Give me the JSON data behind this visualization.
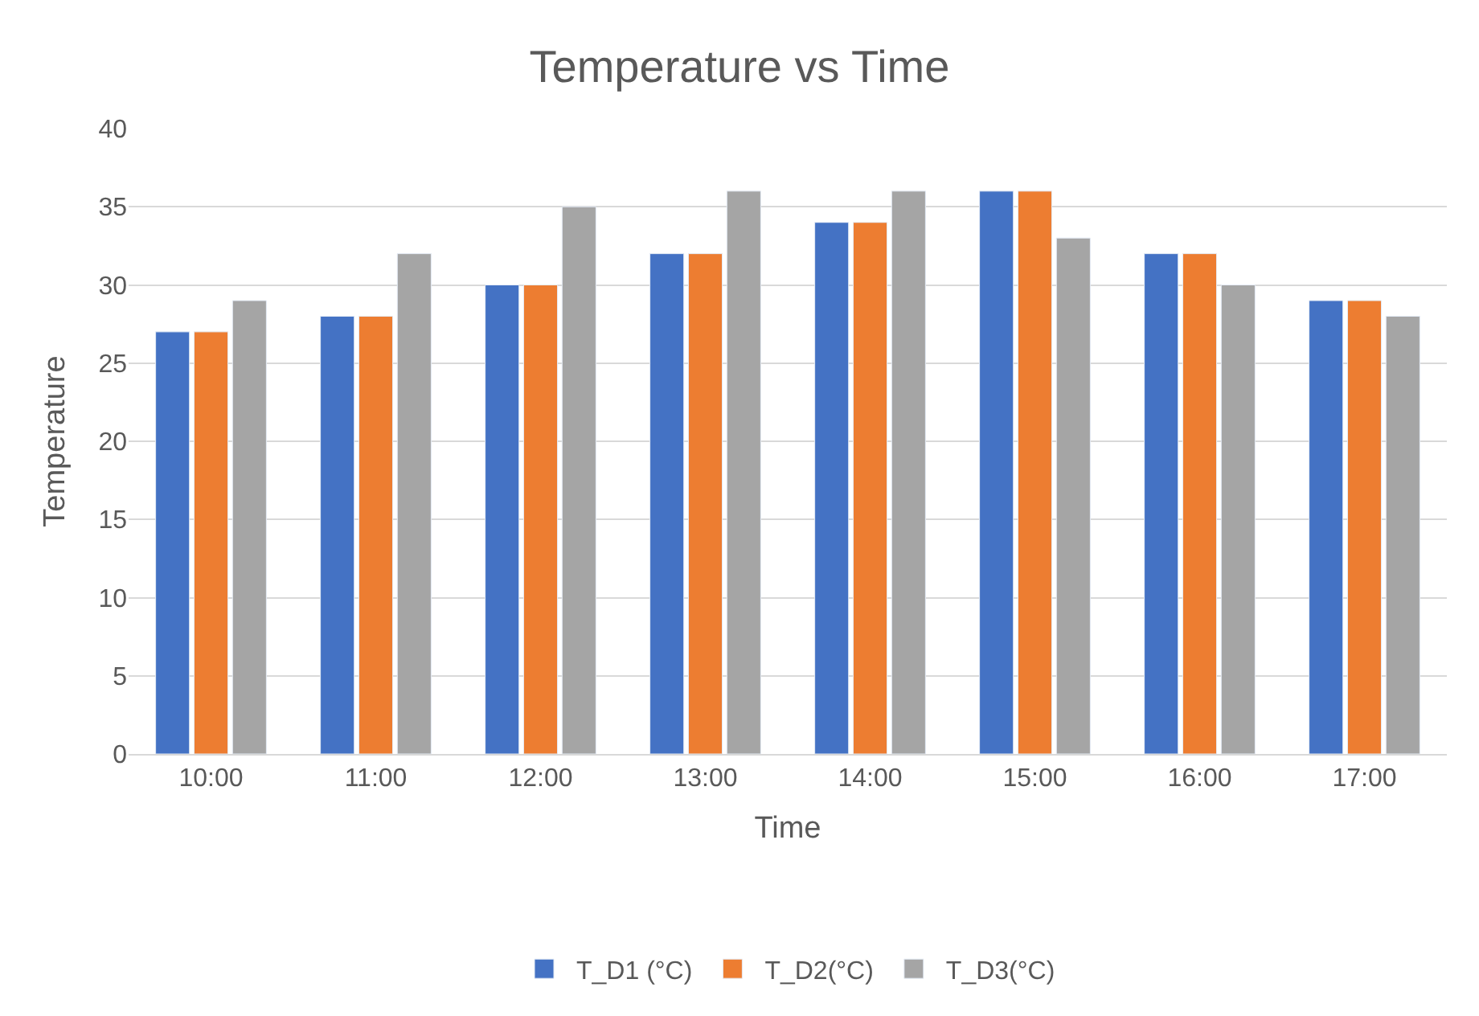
{
  "chart_data": {
    "type": "bar",
    "title": "Temperature vs Time",
    "xlabel": "Time",
    "ylabel": "Temperature",
    "categories": [
      "10:00",
      "11:00",
      "12:00",
      "13:00",
      "14:00",
      "15:00",
      "16:00",
      "17:00"
    ],
    "series": [
      {
        "name": "T_D1 (°C)",
        "color": "#4472c4",
        "values": [
          27,
          28,
          30,
          32,
          34,
          36,
          32,
          29
        ]
      },
      {
        "name": "T_D2(°C)",
        "color": "#ed7d31",
        "values": [
          27,
          28,
          30,
          32,
          34,
          36,
          32,
          29
        ]
      },
      {
        "name": "T_D3(°C)",
        "color": "#a5a5a5",
        "values": [
          29,
          32,
          35,
          36,
          36,
          33,
          30,
          28
        ]
      }
    ],
    "ylim": [
      0,
      40
    ],
    "yticks": [
      0,
      5,
      10,
      15,
      20,
      25,
      30,
      35,
      40
    ],
    "grid": "y",
    "legend": "bottom"
  }
}
